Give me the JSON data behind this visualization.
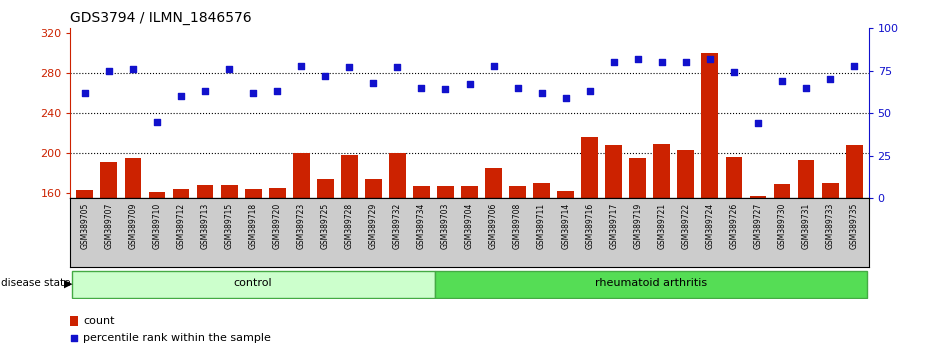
{
  "title": "GDS3794 / ILMN_1846576",
  "samples": [
    "GSM389705",
    "GSM389707",
    "GSM389709",
    "GSM389710",
    "GSM389712",
    "GSM389713",
    "GSM389715",
    "GSM389718",
    "GSM389720",
    "GSM389723",
    "GSM389725",
    "GSM389728",
    "GSM389729",
    "GSM389732",
    "GSM389734",
    "GSM389703",
    "GSM389704",
    "GSM389706",
    "GSM389708",
    "GSM389711",
    "GSM389714",
    "GSM389716",
    "GSM389717",
    "GSM389719",
    "GSM389721",
    "GSM389722",
    "GSM389724",
    "GSM389726",
    "GSM389727",
    "GSM389730",
    "GSM389731",
    "GSM389733",
    "GSM389735"
  ],
  "counts": [
    163,
    191,
    195,
    161,
    164,
    168,
    168,
    164,
    165,
    200,
    174,
    198,
    174,
    200,
    167,
    167,
    167,
    185,
    167,
    170,
    162,
    216,
    208,
    195,
    209,
    203,
    300,
    196,
    157,
    169,
    193,
    170,
    208
  ],
  "percentile_ranks_pct": [
    62,
    75,
    76,
    45,
    60,
    63,
    76,
    62,
    63,
    78,
    72,
    77,
    68,
    77,
    65,
    64,
    67,
    78,
    65,
    62,
    59,
    63,
    80,
    82,
    80,
    80,
    82,
    74,
    44,
    69,
    65,
    70,
    78
  ],
  "n_control": 15,
  "n_ra": 18,
  "ylim_left": [
    155,
    325
  ],
  "ylim_right": [
    0,
    100
  ],
  "yticks_left": [
    160,
    200,
    240,
    280,
    320
  ],
  "yticks_right": [
    0,
    25,
    50,
    75,
    100
  ],
  "bar_color": "#cc2200",
  "dot_color": "#1111cc",
  "control_color": "#ccffcc",
  "ra_color": "#55dd55",
  "left_tick_color": "#cc2200",
  "right_tick_color": "#1111cc"
}
